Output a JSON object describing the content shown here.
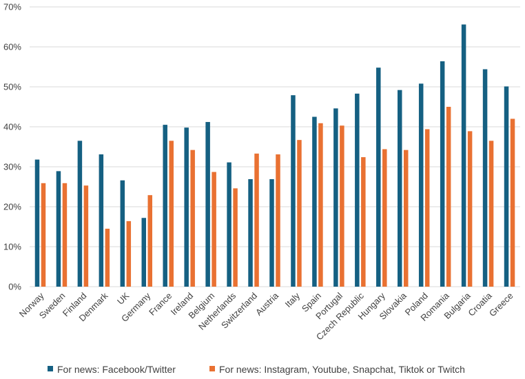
{
  "chart_data": {
    "type": "bar",
    "title": "",
    "xlabel": "",
    "ylabel": "",
    "ylim": [
      0,
      70
    ],
    "ytick_step": 10,
    "y_format": "percent",
    "grid": true,
    "legend_position": "bottom",
    "categories": [
      "Norway",
      "Sweden",
      "Finland",
      "Denmark",
      "UK",
      "Germany",
      "France",
      "Ireland",
      "Belgium",
      "Netherlands",
      "Switzerland",
      "Austria",
      "Italy",
      "Spain",
      "Portugal",
      "Czech Republic",
      "Hungary",
      "Slovakia",
      "Poland",
      "Romania",
      "Bulgaria",
      "Croatia",
      "Greece"
    ],
    "series": [
      {
        "name": "For news: Facebook/Twitter",
        "color": "#156082",
        "values": [
          31.8,
          28.9,
          36.5,
          33.1,
          26.6,
          17.2,
          40.5,
          39.8,
          41.2,
          31.1,
          26.9,
          26.9,
          47.9,
          42.5,
          44.6,
          48.3,
          54.8,
          49.2,
          50.8,
          56.4,
          65.6,
          54.4,
          50.1
        ]
      },
      {
        "name": "For news: Instagram, Youtube, Snapchat, Tiktok or Twitch",
        "color": "#E97132",
        "values": [
          25.9,
          25.9,
          25.3,
          14.5,
          16.4,
          22.9,
          36.5,
          34.2,
          28.7,
          24.6,
          33.3,
          33.1,
          36.7,
          40.9,
          40.3,
          32.4,
          34.4,
          34.2,
          39.4,
          45.0,
          38.9,
          36.5,
          42.0
        ]
      }
    ]
  }
}
